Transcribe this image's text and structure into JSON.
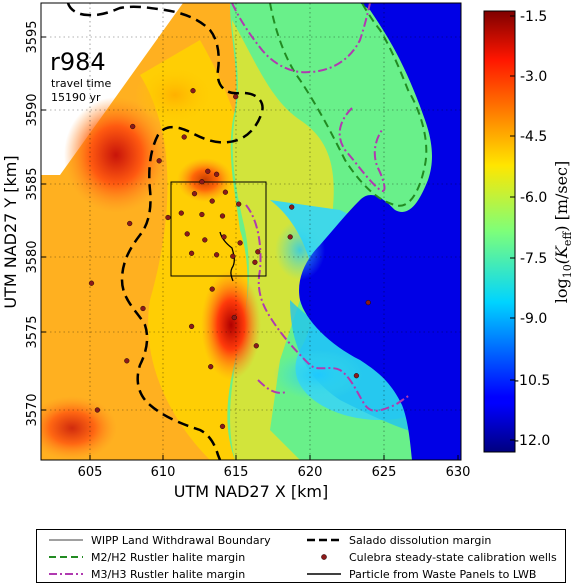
{
  "map": {
    "run_label": "r984",
    "travel_time_label": "travel time",
    "travel_time_value": "15190 yr",
    "x_axis_label": "UTM NAD27 X [km]",
    "y_axis_label": "UTM NAD27 Y [km]",
    "x_ticks": [
      "605",
      "610",
      "615",
      "620",
      "625",
      "630"
    ],
    "y_ticks": [
      "3570",
      "3575",
      "3580",
      "3585",
      "3590",
      "3595"
    ],
    "x_range_km": [
      601.5,
      630.5
    ],
    "y_range_km": [
      3566.5,
      3597.5
    ]
  },
  "colorbar": {
    "label_prefix": "log",
    "label_sub": "10",
    "label_rest": "(K",
    "label_k_sub": "eff",
    "label_units": ") [m/sec]",
    "ticks": [
      "-1.5",
      "-3.0",
      "-4.5",
      "-6.0",
      "-7.5",
      "-9.0",
      "-10.5",
      "-12.0"
    ],
    "range": [
      -12.5,
      -1.5
    ],
    "colormap": "jet"
  },
  "legend": {
    "items": [
      {
        "label": "WIPP Land Withdrawal Boundary",
        "color": "#000000",
        "style": "thin-solid"
      },
      {
        "label": "Salado dissolution margin",
        "color": "#000000",
        "style": "dashed"
      },
      {
        "label": "M2/H2 Rustler halite margin",
        "color": "#228b22",
        "style": "dashed"
      },
      {
        "label": "Culebra steady-state calibration wells",
        "color": "#8b1a1a",
        "style": "dot"
      },
      {
        "label": "M3/H3 Rustler halite margin",
        "color": "#b03ab0",
        "style": "dash-dot"
      },
      {
        "label": "Particle from Waste Panels to LWB",
        "color": "#000000",
        "style": "solid"
      }
    ]
  },
  "wells_km": [
    [
      607.9,
      3589.0
    ],
    [
      609.7,
      3586.7
    ],
    [
      611.4,
      3588.3
    ],
    [
      612.6,
      3585.3
    ],
    [
      613.0,
      3586.0
    ],
    [
      613.6,
      3585.8
    ],
    [
      612.1,
      3584.5
    ],
    [
      613.3,
      3584.0
    ],
    [
      614.2,
      3584.6
    ],
    [
      611.2,
      3583.2
    ],
    [
      612.6,
      3583.1
    ],
    [
      614.0,
      3583.0
    ],
    [
      615.1,
      3583.8
    ],
    [
      611.6,
      3581.8
    ],
    [
      612.8,
      3581.4
    ],
    [
      614.1,
      3581.6
    ],
    [
      615.2,
      3581.2
    ],
    [
      613.6,
      3580.4
    ],
    [
      614.7,
      3580.3
    ],
    [
      616.4,
      3580.6
    ],
    [
      618.7,
      3583.6
    ],
    [
      618.6,
      3581.6
    ],
    [
      610.3,
      3582.9
    ],
    [
      605.1,
      3578.5
    ],
    [
      607.7,
      3582.5
    ],
    [
      608.6,
      3576.8
    ],
    [
      613.3,
      3578.1
    ],
    [
      614.8,
      3576.2
    ],
    [
      616.3,
      3574.3
    ],
    [
      613.2,
      3572.9
    ],
    [
      611.9,
      3575.6
    ],
    [
      607.5,
      3573.3
    ],
    [
      605.5,
      3570.0
    ],
    [
      614.0,
      3568.9
    ],
    [
      623.1,
      3572.3
    ],
    [
      623.9,
      3577.2
    ],
    [
      616.2,
      3579.9
    ],
    [
      612.0,
      3591.4
    ],
    [
      614.9,
      3591.0
    ],
    [
      611.9,
      3580.5
    ]
  ]
}
